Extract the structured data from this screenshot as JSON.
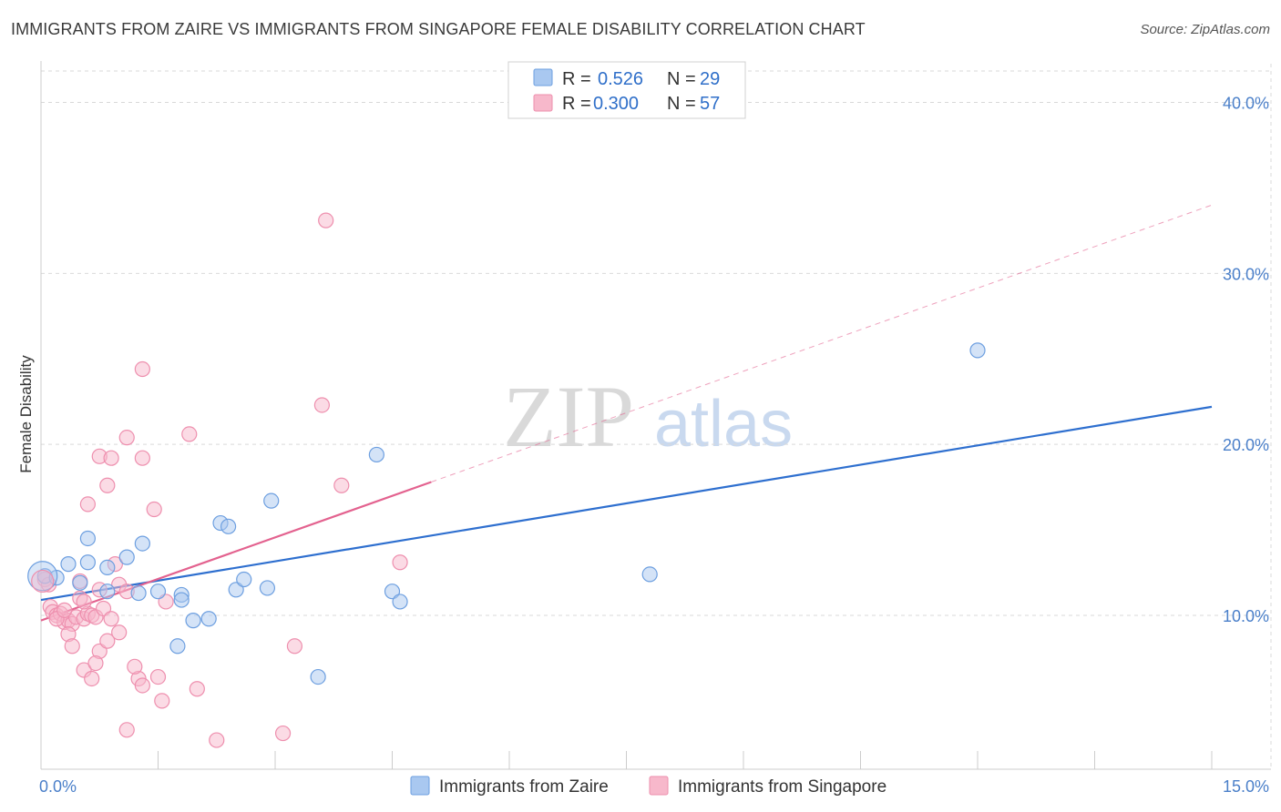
{
  "header": {
    "title": "IMMIGRANTS FROM ZAIRE VS IMMIGRANTS FROM SINGAPORE FEMALE DISABILITY CORRELATION CHART",
    "source": "Source: ZipAtlas.com"
  },
  "watermark": {
    "zip": "ZIP",
    "atlas": "atlas"
  },
  "legend": {
    "r_label": "R =",
    "n_label": "N =",
    "rows": [
      {
        "r": "0.526",
        "n": "29"
      },
      {
        "r": "0.300",
        "n": "57"
      }
    ]
  },
  "colors": {
    "zaire_fill": "#a9c8f0",
    "zaire_stroke": "#6d9fe0",
    "zaire_line": "#2e6fcf",
    "singapore_fill": "#f7b8cb",
    "singapore_stroke": "#ee8fae",
    "singapore_line": "#e3628f",
    "grid": "#d9d9d9",
    "tick_text": "#4a7fc9"
  },
  "chart_data": {
    "type": "scatter",
    "title": "IMMIGRANTS FROM ZAIRE VS IMMIGRANTS FROM SINGAPORE FEMALE DISABILITY CORRELATION CHART",
    "xlabel": "",
    "ylabel": "Female Disability",
    "xlim": [
      0,
      15
    ],
    "ylim": [
      1.0,
      42.0
    ],
    "x_tick_labels": [
      "0.0%",
      "15.0%"
    ],
    "y_ticks": [
      10,
      20,
      30,
      40
    ],
    "y_tick_labels": [
      "10.0%",
      "20.0%",
      "30.0%",
      "40.0%"
    ],
    "grid": true,
    "legend_position": "top-center",
    "series": [
      {
        "name": "Immigrants from Zaire",
        "r": 0.526,
        "n": 29,
        "points": [
          [
            0.05,
            12.3
          ],
          [
            0.2,
            12.2
          ],
          [
            0.35,
            13.0
          ],
          [
            0.5,
            11.9
          ],
          [
            0.6,
            14.5
          ],
          [
            0.6,
            13.1
          ],
          [
            0.85,
            12.8
          ],
          [
            0.85,
            11.4
          ],
          [
            1.1,
            13.4
          ],
          [
            1.3,
            14.2
          ],
          [
            1.25,
            11.3
          ],
          [
            1.5,
            11.4
          ],
          [
            1.8,
            11.2
          ],
          [
            1.8,
            10.9
          ],
          [
            1.75,
            8.2
          ],
          [
            1.95,
            9.7
          ],
          [
            2.15,
            9.8
          ],
          [
            2.3,
            15.4
          ],
          [
            2.4,
            15.2
          ],
          [
            2.5,
            11.5
          ],
          [
            2.6,
            12.1
          ],
          [
            2.9,
            11.6
          ],
          [
            2.95,
            16.7
          ],
          [
            3.55,
            6.4
          ],
          [
            4.3,
            19.4
          ],
          [
            4.5,
            11.4
          ],
          [
            4.6,
            10.8
          ],
          [
            7.8,
            12.4
          ],
          [
            12.0,
            25.5
          ]
        ],
        "trend": {
          "x": [
            0.0,
            15.0
          ],
          "y": [
            10.9,
            22.2
          ],
          "style": "solid"
        }
      },
      {
        "name": "Immigrants from Singapore",
        "r": 0.3,
        "n": 57,
        "points": [
          [
            0.05,
            12.1
          ],
          [
            0.1,
            11.8
          ],
          [
            0.12,
            10.5
          ],
          [
            0.15,
            10.2
          ],
          [
            0.2,
            10.0
          ],
          [
            0.25,
            10.1
          ],
          [
            0.3,
            9.6
          ],
          [
            0.35,
            9.7
          ],
          [
            0.4,
            9.5
          ],
          [
            0.45,
            9.9
          ],
          [
            0.35,
            8.9
          ],
          [
            0.4,
            8.2
          ],
          [
            0.55,
            9.8
          ],
          [
            0.6,
            10.1
          ],
          [
            0.5,
            11.0
          ],
          [
            0.55,
            10.8
          ],
          [
            0.65,
            10.0
          ],
          [
            0.7,
            9.9
          ],
          [
            0.5,
            12.0
          ],
          [
            0.55,
            6.8
          ],
          [
            0.65,
            6.3
          ],
          [
            0.75,
            7.9
          ],
          [
            0.8,
            10.4
          ],
          [
            0.85,
            8.5
          ],
          [
            0.9,
            9.8
          ],
          [
            0.95,
            13.0
          ],
          [
            1.0,
            9.0
          ],
          [
            1.0,
            11.8
          ],
          [
            1.1,
            11.4
          ],
          [
            1.25,
            6.3
          ],
          [
            1.3,
            5.9
          ],
          [
            1.2,
            7.0
          ],
          [
            0.6,
            16.5
          ],
          [
            0.85,
            17.6
          ],
          [
            0.75,
            19.3
          ],
          [
            0.9,
            19.2
          ],
          [
            1.1,
            20.4
          ],
          [
            1.3,
            19.2
          ],
          [
            1.3,
            24.4
          ],
          [
            1.45,
            16.2
          ],
          [
            1.5,
            6.4
          ],
          [
            1.55,
            5.0
          ],
          [
            1.6,
            10.8
          ],
          [
            1.9,
            20.6
          ],
          [
            2.0,
            5.7
          ],
          [
            2.25,
            2.7
          ],
          [
            3.1,
            3.1
          ],
          [
            3.25,
            8.2
          ],
          [
            3.65,
            33.1
          ],
          [
            3.6,
            22.3
          ],
          [
            3.85,
            17.6
          ],
          [
            4.6,
            13.1
          ],
          [
            1.1,
            3.3
          ],
          [
            0.7,
            7.2
          ],
          [
            0.75,
            11.5
          ],
          [
            0.2,
            9.8
          ],
          [
            0.3,
            10.3
          ]
        ],
        "trend": {
          "x": [
            0.0,
            5.0
          ],
          "y": [
            9.7,
            17.8
          ],
          "style": "solid"
        },
        "trend_extension": {
          "x": [
            5.0,
            15.0
          ],
          "y": [
            17.8,
            34.0
          ],
          "style": "dashed"
        }
      }
    ]
  }
}
